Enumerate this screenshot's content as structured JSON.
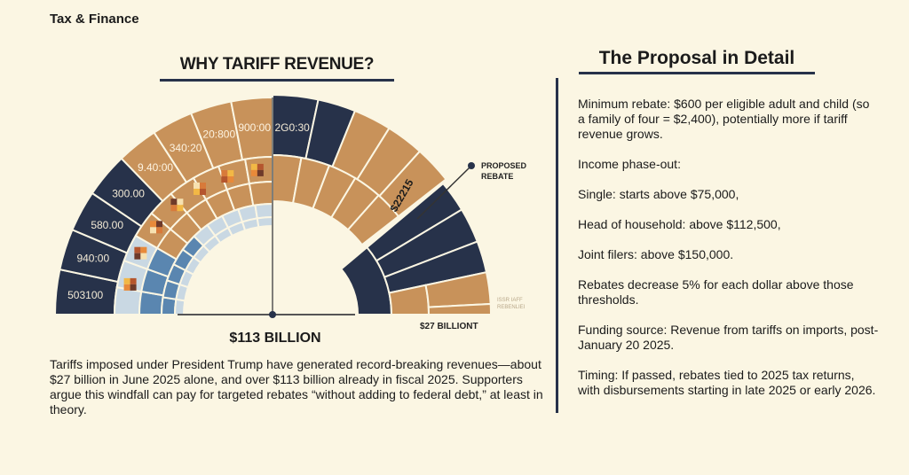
{
  "section_label": "Tax & Finance",
  "left": {
    "title": "WHY TARIFF REVENUE?",
    "outer_labels": [
      "503100",
      "940:00",
      "580.00",
      "300.00",
      "9.40:00",
      "340:20",
      "20:800",
      "900:00",
      "2G0:30"
    ],
    "wedge_label": "$22215",
    "callout": "PROPOSED\nREBATE",
    "small_label": "$27 BILLIONT",
    "faint_label": "ISSR IAFF REBENLIEI",
    "total_label": "$113 BILLION",
    "paragraph": "Tariffs imposed under President Trump have generated record-breaking revenues—about $27 billion in June 2025 alone, and over $113 billion already in fiscal 2025. Supporters argue this windfall can pay for targeted rebates “without adding to federal debt,” at least in theory.",
    "colors": {
      "navy": "#27324a",
      "tan": "#c8925a",
      "blue": "#5a86b0",
      "light_blue": "#c9d8e3"
    }
  },
  "right": {
    "title": "The Proposal in Detail",
    "paragraphs": [
      "Minimum rebate: $600 per eligible adult and child (so a family of four = $2,400), potentially more if tariff revenue grows.",
      "Income phase-out:",
      "Single: starts above $75,000,",
      "Head of household: above $112,500,",
      "Joint filers: above $150,000.",
      "Rebates decrease 5% for each dollar above those thresholds.",
      "Funding source: Revenue from tariffs on imports, post-January 20 2025.",
      "Timing: If passed, rebates tied to 2025 tax returns, with disbursements starting in late 2025 or early 2026."
    ]
  }
}
